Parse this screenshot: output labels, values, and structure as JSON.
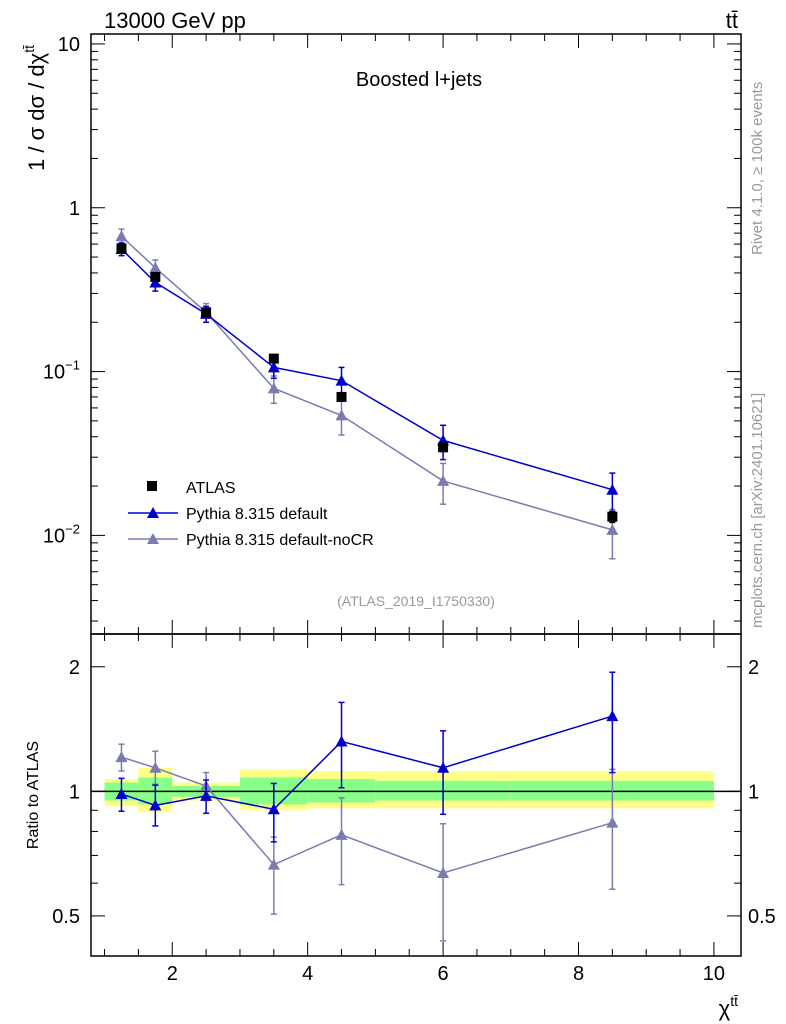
{
  "header": {
    "left": "13000 GeV pp",
    "right": "tt̄"
  },
  "side_texts": {
    "rivet": "Rivet 4.1.0, ≥ 100k events",
    "mcplots": "mcplots.cern.ch [arXiv:2401.10621]"
  },
  "chart_data": {
    "type": "line",
    "title": "Boosted l+jets",
    "analysis_label": "(ATLAS_2019_I1750330)",
    "ylabel": "1 / σ dσ / dχ",
    "ylabel_sup": "tt̄",
    "xlabel": "χ",
    "xlabel_sup": "tt̄",
    "xlim": [
      0.8,
      10.4
    ],
    "ylim": [
      0.0025,
      11.5
    ],
    "yscale": "log",
    "x_ticks": [
      2,
      4,
      6,
      8,
      10
    ],
    "y_ticks": [
      {
        "value": 10,
        "label": "10"
      },
      {
        "value": 1,
        "label": "1"
      },
      {
        "value": 0.1,
        "label": "10",
        "sup": "−1"
      },
      {
        "value": 0.01,
        "label": "10",
        "sup": "−2"
      }
    ],
    "bin_edges": [
      1,
      1.5,
      2,
      3,
      4,
      5,
      7,
      10
    ],
    "x": [
      1.25,
      1.75,
      2.5,
      3.5,
      4.5,
      6.0,
      8.5
    ],
    "legend": {
      "placement": "lower-left",
      "entries": [
        "ATLAS",
        "Pythia 8.315 default",
        "Pythia 8.315 default-noCR"
      ]
    },
    "series": [
      {
        "name": "ATLAS",
        "color": "#000000",
        "marker": "square",
        "values": [
          0.565,
          0.378,
          0.23,
          0.12,
          0.07,
          0.0345,
          0.013
        ],
        "err": [
          0.03,
          0.02,
          0.012,
          0.006,
          0.004,
          0.002,
          0.001
        ]
      },
      {
        "name": "Pythia 8.315 default",
        "color": "#0000cc",
        "marker": "triangle",
        "values": [
          0.56,
          0.35,
          0.225,
          0.106,
          0.088,
          0.038,
          0.019
        ],
        "err": [
          0.05,
          0.04,
          0.025,
          0.015,
          0.018,
          0.009,
          0.005
        ]
      },
      {
        "name": "Pythia 8.315 default-noCR",
        "color": "#7b7bb0",
        "marker": "triangle",
        "values": [
          0.67,
          0.43,
          0.23,
          0.079,
          0.054,
          0.0215,
          0.0108
        ],
        "err": [
          0.07,
          0.05,
          0.03,
          0.015,
          0.013,
          0.006,
          0.0036
        ]
      }
    ],
    "ratio_panel": {
      "ylabel": "Ratio to ATLAS",
      "yscale": "log",
      "ylim": [
        0.4,
        2.4
      ],
      "y_ticks": [
        {
          "value": 2,
          "label": "2"
        },
        {
          "value": 1,
          "label": "1"
        },
        {
          "value": 0.5,
          "label": "0.5"
        }
      ],
      "band_green": [
        [
          0.95,
          1.05
        ],
        [
          0.93,
          1.08
        ],
        [
          0.97,
          1.03
        ],
        [
          0.93,
          1.08
        ],
        [
          0.94,
          1.07
        ],
        [
          0.95,
          1.06
        ],
        [
          0.95,
          1.06
        ]
      ],
      "band_yellow": [
        [
          0.92,
          1.07
        ],
        [
          0.89,
          1.14
        ],
        [
          0.95,
          1.05
        ],
        [
          0.9,
          1.13
        ],
        [
          0.91,
          1.12
        ],
        [
          0.91,
          1.12
        ],
        [
          0.91,
          1.12
        ]
      ],
      "series": [
        {
          "name": "Pythia 8.315 default",
          "color": "#0000cc",
          "values": [
            0.985,
            0.925,
            0.975,
            0.905,
            1.32,
            1.14,
            1.52
          ],
          "err_low": [
            0.09,
            0.1,
            0.09,
            0.15,
            0.3,
            0.26,
            0.41
          ],
          "err_high": [
            0.09,
            0.11,
            0.09,
            0.14,
            0.32,
            0.26,
            0.42
          ]
        },
        {
          "name": "Pythia 8.315 default-noCR",
          "color": "#7b7bb0",
          "values": [
            1.21,
            1.14,
            1.03,
            0.665,
            0.785,
            0.635,
            0.84
          ],
          "err_low": [
            0.09,
            0.1,
            0.08,
            0.16,
            0.19,
            0.2,
            0.26
          ],
          "err_high": [
            0.09,
            0.11,
            0.08,
            0.11,
            0.18,
            0.2,
            0.29
          ]
        }
      ]
    }
  }
}
